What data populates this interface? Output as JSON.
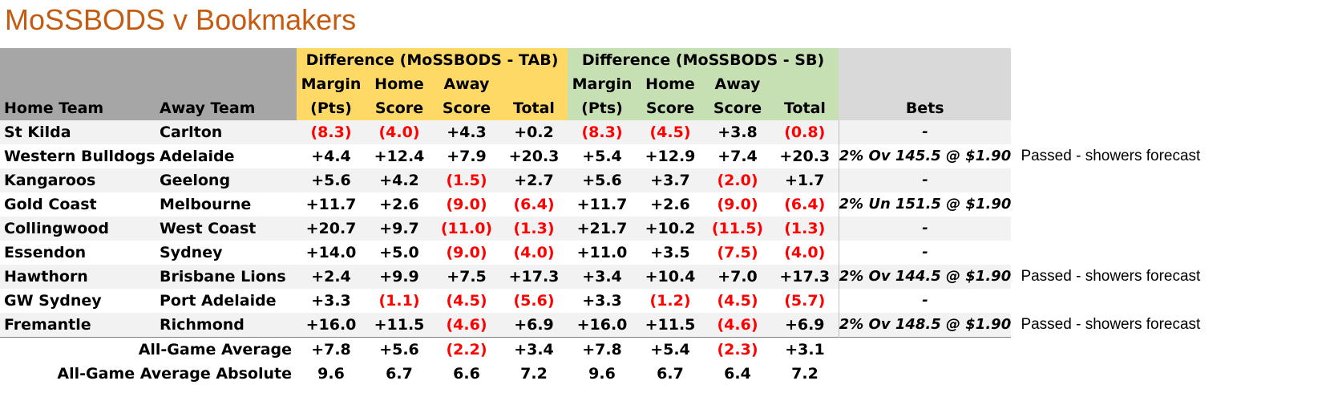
{
  "title": "MoSSBODS v Bookmakers",
  "headers": {
    "home_team": "Home Team",
    "away_team": "Away Team",
    "group_tab": "Difference (MoSSBODS - TAB)",
    "group_sb": "Difference (MoSSBODS - SB)",
    "margin_1": "Margin",
    "margin_2": "(Pts)",
    "home_1": "Home",
    "home_2": "Score",
    "away_1": "Away",
    "away_2": "Score",
    "total": "Total",
    "bets": "Bets"
  },
  "rows": [
    {
      "home": "St Kilda",
      "away": "Carlton",
      "tab": [
        "(8.3)",
        "(4.0)",
        "+4.3",
        "+0.2"
      ],
      "sb": [
        "(8.3)",
        "(4.5)",
        "+3.8",
        "(0.8)"
      ],
      "bet": "-",
      "note": ""
    },
    {
      "home": "Western Bulldogs",
      "away": "Adelaide",
      "tab": [
        "+4.4",
        "+12.4",
        "+7.9",
        "+20.3"
      ],
      "sb": [
        "+5.4",
        "+12.9",
        "+7.4",
        "+20.3"
      ],
      "bet": "2% Ov 145.5 @ $1.90",
      "note": "Passed - showers forecast"
    },
    {
      "home": "Kangaroos",
      "away": "Geelong",
      "tab": [
        "+5.6",
        "+4.2",
        "(1.5)",
        "+2.7"
      ],
      "sb": [
        "+5.6",
        "+3.7",
        "(2.0)",
        "+1.7"
      ],
      "bet": "-",
      "note": ""
    },
    {
      "home": "Gold Coast",
      "away": "Melbourne",
      "tab": [
        "+11.7",
        "+2.6",
        "(9.0)",
        "(6.4)"
      ],
      "sb": [
        "+11.7",
        "+2.6",
        "(9.0)",
        "(6.4)"
      ],
      "bet": "2% Un 151.5 @ $1.90",
      "note": ""
    },
    {
      "home": "Collingwood",
      "away": "West Coast",
      "tab": [
        "+20.7",
        "+9.7",
        "(11.0)",
        "(1.3)"
      ],
      "sb": [
        "+21.7",
        "+10.2",
        "(11.5)",
        "(1.3)"
      ],
      "bet": "-",
      "note": ""
    },
    {
      "home": "Essendon",
      "away": "Sydney",
      "tab": [
        "+14.0",
        "+5.0",
        "(9.0)",
        "(4.0)"
      ],
      "sb": [
        "+11.0",
        "+3.5",
        "(7.5)",
        "(4.0)"
      ],
      "bet": "-",
      "note": ""
    },
    {
      "home": "Hawthorn",
      "away": "Brisbane Lions",
      "tab": [
        "+2.4",
        "+9.9",
        "+7.5",
        "+17.3"
      ],
      "sb": [
        "+3.4",
        "+10.4",
        "+7.0",
        "+17.3"
      ],
      "bet": "2% Ov 144.5 @ $1.90",
      "note": "Passed - showers forecast"
    },
    {
      "home": "GW Sydney",
      "away": "Port Adelaide",
      "tab": [
        "+3.3",
        "(1.1)",
        "(4.5)",
        "(5.6)"
      ],
      "sb": [
        "+3.3",
        "(1.2)",
        "(4.5)",
        "(5.7)"
      ],
      "bet": "-",
      "note": ""
    },
    {
      "home": "Fremantle",
      "away": "Richmond",
      "tab": [
        "+16.0",
        "+11.5",
        "(4.6)",
        "+6.9"
      ],
      "sb": [
        "+16.0",
        "+11.5",
        "(4.6)",
        "+6.9"
      ],
      "bet": "2% Ov 148.5 @ $1.90",
      "note": "Passed - showers forecast"
    }
  ],
  "summary": [
    {
      "label": "All-Game Average",
      "tab": [
        "+7.8",
        "+5.6",
        "(2.2)",
        "+3.4"
      ],
      "sb": [
        "+7.8",
        "+5.4",
        "(2.3)",
        "+3.1"
      ]
    },
    {
      "label": "All-Game Average Absolute",
      "tab": [
        "9.6",
        "6.7",
        "6.6",
        "7.2"
      ],
      "sb": [
        "9.6",
        "6.7",
        "6.4",
        "7.2"
      ]
    }
  ],
  "colors": {
    "title": "#c55a11",
    "header_grey": "#a6a6a6",
    "header_tab": "#ffd966",
    "header_sb": "#c6e0b4",
    "negative": "#ff0000",
    "row_alt": "#f2f2f2"
  }
}
